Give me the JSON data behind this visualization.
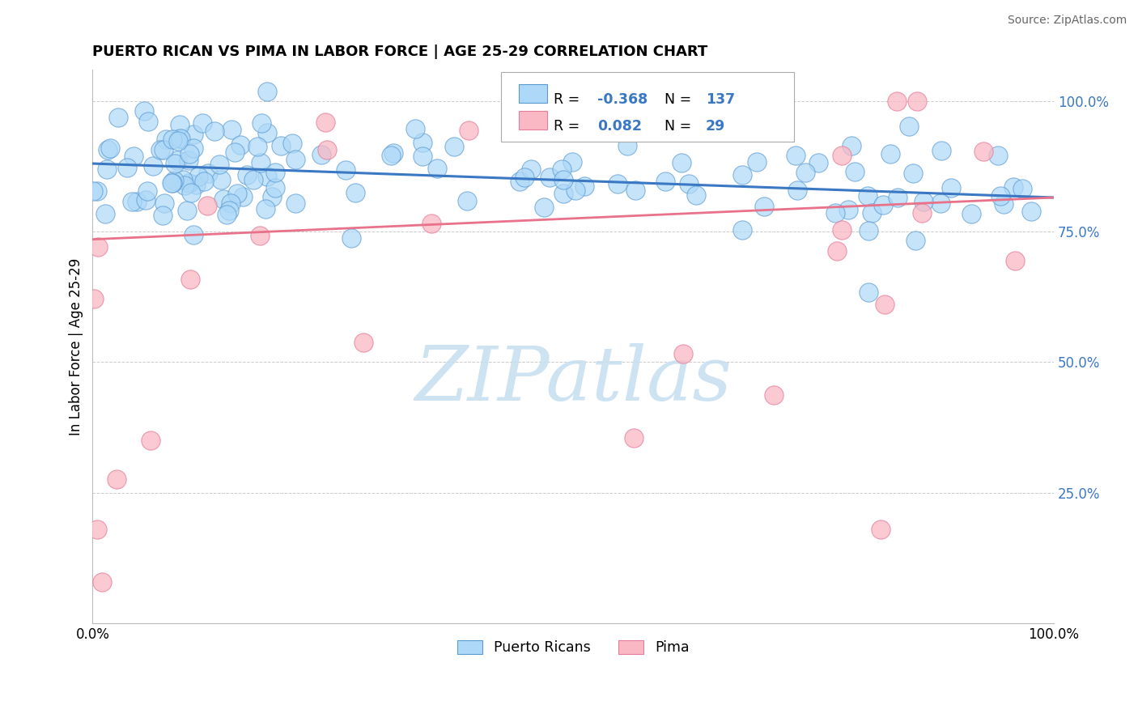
{
  "title": "PUERTO RICAN VS PIMA IN LABOR FORCE | AGE 25-29 CORRELATION CHART",
  "source_text": "Source: ZipAtlas.com",
  "ylabel": "In Labor Force | Age 25-29",
  "blue_label": "Puerto Ricans",
  "pink_label": "Pima",
  "blue_R": -0.368,
  "blue_N": 137,
  "pink_R": 0.082,
  "pink_N": 29,
  "blue_color": "#ADD8F7",
  "pink_color": "#F9B8C4",
  "blue_edge_color": "#5B9BD5",
  "pink_edge_color": "#E87B9A",
  "blue_line_color": "#3B78C3",
  "pink_line_color": "#E8728A",
  "watermark": "ZIPatlas",
  "xlim": [
    0.0,
    1.0
  ],
  "ylim": [
    0.0,
    1.06
  ],
  "yticks": [
    0.25,
    0.5,
    0.75,
    1.0
  ],
  "ytick_labels": [
    "25.0%",
    "50.0%",
    "75.0%",
    "100.0%"
  ],
  "xtick_labels": [
    "0.0%",
    "100.0%"
  ],
  "grid_color": "#CCCCCC",
  "background_color": "#FFFFFF",
  "blue_line_start_y": 0.88,
  "blue_line_end_y": 0.815,
  "pink_line_start_y": 0.735,
  "pink_line_end_y": 0.815
}
